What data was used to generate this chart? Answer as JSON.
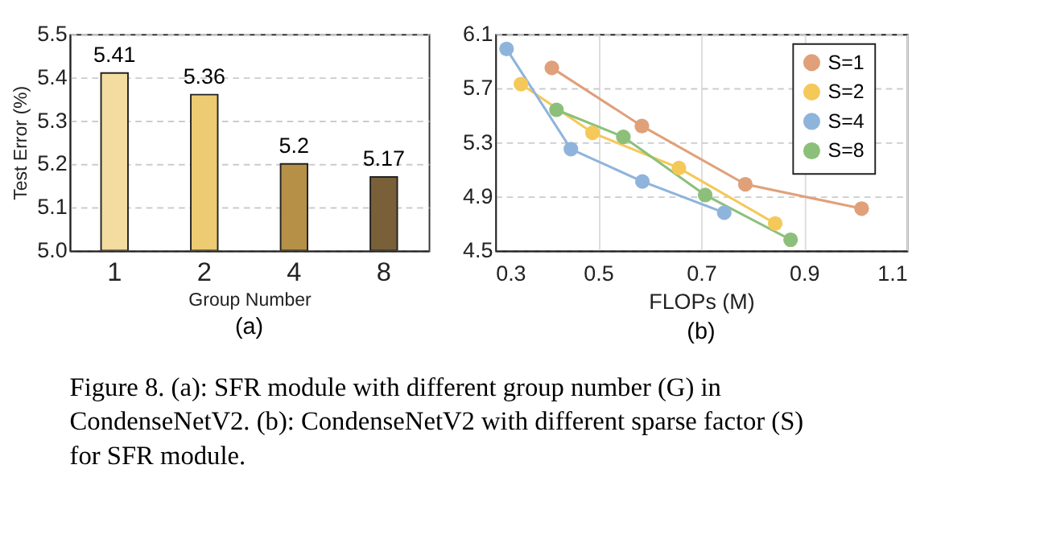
{
  "chart_data": [
    {
      "type": "bar",
      "xlabel": "Group Number",
      "ylabel": "Test Error (%)",
      "categories": [
        "1",
        "2",
        "4",
        "8"
      ],
      "values": [
        5.41,
        5.36,
        5.2,
        5.17
      ],
      "colors": [
        "#f3dca0",
        "#eccb72",
        "#b59046",
        "#7a6038"
      ],
      "ylim": [
        5.0,
        5.5
      ],
      "yticks": [
        {
          "value": 5.0,
          "label": "5.0"
        },
        5.1,
        5.2,
        5.3,
        5.4,
        5.5
      ],
      "grid": "y",
      "data_labels": true,
      "annotations": [
        "(a)"
      ]
    },
    {
      "type": "line",
      "xlabel": "FLOPs (M)",
      "xlim": [
        0.3,
        1.1
      ],
      "xticks": [
        0.3,
        0.5,
        0.7,
        0.9,
        1.1
      ],
      "ylim": [
        4.5,
        6.1
      ],
      "yticks": [
        4.5,
        4.9,
        5.3,
        5.7,
        6.1
      ],
      "grid": true,
      "legend": "top right",
      "marker": "circle",
      "annotations": [
        "(b)"
      ],
      "series": [
        {
          "name": "S=1",
          "color": "#e0a07a",
          "x": [
            0.41,
            0.585,
            0.786,
            1.012
          ],
          "values": [
            5.85,
            5.42,
            4.99,
            4.81
          ]
        },
        {
          "name": "S=2",
          "color": "#f5c85a",
          "x": [
            0.35,
            0.489,
            0.657,
            0.844
          ],
          "values": [
            5.73,
            5.37,
            5.11,
            4.7
          ]
        },
        {
          "name": "S=4",
          "color": "#8fb4dc",
          "x": [
            0.322,
            0.447,
            0.586,
            0.745
          ],
          "values": [
            5.99,
            5.25,
            5.01,
            4.78
          ]
        },
        {
          "name": "S=8",
          "color": "#8cc07a",
          "x": [
            0.419,
            0.549,
            0.708,
            0.874
          ],
          "values": [
            5.54,
            5.34,
            4.91,
            4.58
          ]
        }
      ]
    },
    {
      "type": "other",
      "annotations": [
        "Figure 8. (a): SFR module with different group number (G) in CondenseNetV2. (b): CondenseNetV2 with different sparse factor (S) for SFR module."
      ]
    }
  ]
}
